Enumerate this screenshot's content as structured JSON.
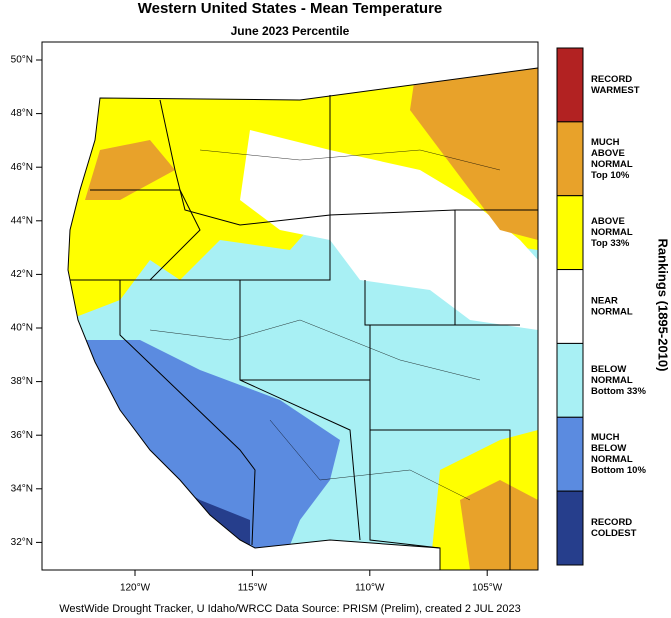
{
  "title": "Western United States - Mean Temperature",
  "subtitle": "June 2023 Percentile",
  "map": {
    "lat_labels": [
      "50°N",
      "48°N",
      "46°N",
      "44°N",
      "42°N",
      "40°N",
      "38°N",
      "36°N",
      "34°N",
      "32°N"
    ],
    "lon_labels": [
      "120°W",
      "115°W",
      "110°W",
      "105°W"
    ]
  },
  "legend": {
    "title": "Rankings (1895-2010)",
    "items": [
      {
        "lines": [
          "RECORD",
          "WARMEST"
        ],
        "color": "#b22222"
      },
      {
        "lines": [
          "MUCH",
          "ABOVE",
          "NORMAL",
          "Top 10%"
        ],
        "color": "#e8a22a"
      },
      {
        "lines": [
          "ABOVE",
          "NORMAL",
          "Top 33%"
        ],
        "color": "#ffff00"
      },
      {
        "lines": [
          "NEAR",
          "NORMAL"
        ],
        "color": "#ffffff"
      },
      {
        "lines": [
          "BELOW",
          "NORMAL",
          "Bottom 33%"
        ],
        "color": "#a8f0f4"
      },
      {
        "lines": [
          "MUCH",
          "BELOW",
          "NORMAL",
          "Bottom 10%"
        ],
        "color": "#5b8be0"
      },
      {
        "lines": [
          "RECORD",
          "COLDEST"
        ],
        "color": "#263e8c"
      }
    ]
  },
  "footer": "WestWide Drought Tracker, U Idaho/WRCC Data Source: PRISM (Prelim), created  2 JUL 2023"
}
